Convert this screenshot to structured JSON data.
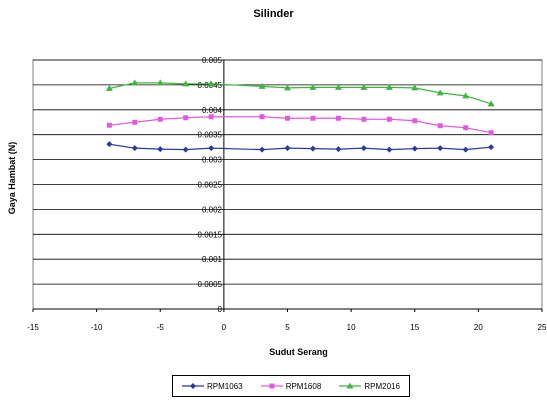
{
  "chart_data": {
    "type": "line",
    "title": "Silinder",
    "xlabel": "Sudut Serang",
    "ylabel": "Gaya Hambat (N)",
    "xlim": [
      -15,
      25
    ],
    "ylim": [
      0,
      0.005
    ],
    "x_ticks": [
      "-15",
      "-10",
      "-5",
      "0",
      "5",
      "10",
      "15",
      "20",
      "25"
    ],
    "y_ticks": [
      "0",
      "0.0005",
      "0.001",
      "0.0015",
      "0.002",
      "0.0025",
      "0.003",
      "0.0035",
      "0.004",
      "0.0045",
      "0.005"
    ],
    "grid": "horizontal",
    "legend_position": "bottom",
    "x": [
      -9,
      -7,
      -5,
      -3,
      -1,
      3,
      5,
      7,
      9,
      11,
      13,
      15,
      17,
      19,
      21
    ],
    "series": [
      {
        "name": "RPM1063",
        "color": "#2a3b9c",
        "marker": "diamond",
        "values": [
          0.00331,
          0.00323,
          0.00321,
          0.0032,
          0.00323,
          0.0032,
          0.00323,
          0.00322,
          0.00321,
          0.00323,
          0.0032,
          0.00322,
          0.00323,
          0.0032,
          0.00325
        ]
      },
      {
        "name": "RPM1608",
        "color": "#e35ae0",
        "marker": "square",
        "values": [
          0.00369,
          0.00375,
          0.00381,
          0.00384,
          0.00386,
          0.00386,
          0.00383,
          0.00383,
          0.00383,
          0.00381,
          0.00381,
          0.00378,
          0.00368,
          0.00364,
          0.00354
        ]
      },
      {
        "name": "RPM2016",
        "color": "#3fb53f",
        "marker": "triangle",
        "values": [
          0.00443,
          0.00454,
          0.00454,
          0.00452,
          0.00452,
          0.00447,
          0.00444,
          0.00445,
          0.00445,
          0.00445,
          0.00445,
          0.00444,
          0.00434,
          0.00428,
          0.00412
        ]
      }
    ]
  }
}
